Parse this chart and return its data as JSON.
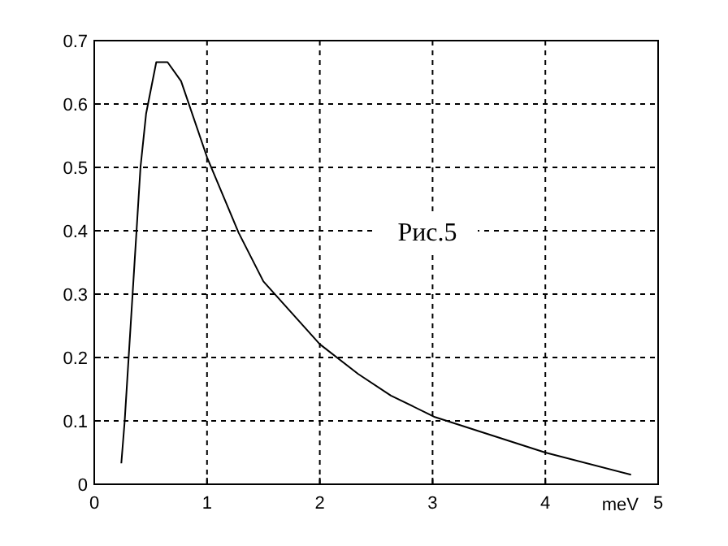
{
  "chart_data": {
    "type": "line",
    "xlabel": "meV",
    "annotations": [
      "Рис.5"
    ],
    "x": [
      0.24,
      0.27,
      0.34,
      0.41,
      0.46,
      0.55,
      0.65,
      0.77,
      1.0,
      1.28,
      1.5,
      2.0,
      2.34,
      2.63,
      3.02,
      4.0,
      4.76
    ],
    "values": [
      0.033,
      0.1,
      0.3,
      0.5,
      0.585,
      0.666,
      0.666,
      0.636,
      0.516,
      0.397,
      0.32,
      0.221,
      0.174,
      0.14,
      0.106,
      0.05,
      0.015
    ],
    "color": "#000000",
    "xlim": [
      0,
      5
    ],
    "ylim": [
      0,
      0.7
    ],
    "xticks": [
      0,
      1,
      2,
      3,
      4,
      5
    ],
    "yticks": [
      0,
      0.1,
      0.2,
      0.3,
      0.4,
      0.5,
      0.6,
      0.7
    ],
    "grid": true,
    "line_style": "solid",
    "marker": "none"
  }
}
